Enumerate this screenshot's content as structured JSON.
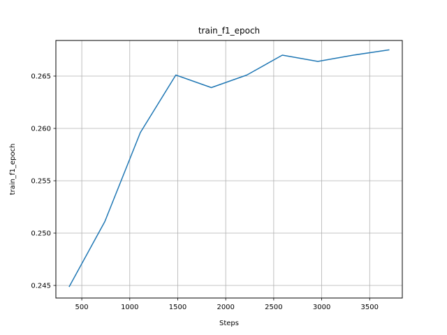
{
  "chart_data": {
    "type": "line",
    "title": "train_f1_epoch",
    "xlabel": "Steps",
    "ylabel": "train_f1_epoch",
    "xlim": [
      230,
      3840
    ],
    "ylim": [
      0.2438,
      0.2684
    ],
    "xticks": [
      500,
      1000,
      1500,
      2000,
      2500,
      3000,
      3500
    ],
    "xtick_labels": [
      "500",
      "1000",
      "1500",
      "2000",
      "2500",
      "3000",
      "3500"
    ],
    "yticks": [
      0.245,
      0.25,
      0.255,
      0.26,
      0.265
    ],
    "ytick_labels": [
      "0.245",
      "0.250",
      "0.255",
      "0.260",
      "0.265"
    ],
    "grid": true,
    "series": [
      {
        "color": "#1f77b4",
        "x": [
          370,
          740,
          1110,
          1480,
          1850,
          2220,
          2590,
          2960,
          3330,
          3700
        ],
        "y": [
          0.2449,
          0.2511,
          0.2596,
          0.2651,
          0.2639,
          0.2651,
          0.267,
          0.2664,
          0.267,
          0.2675
        ]
      }
    ]
  }
}
